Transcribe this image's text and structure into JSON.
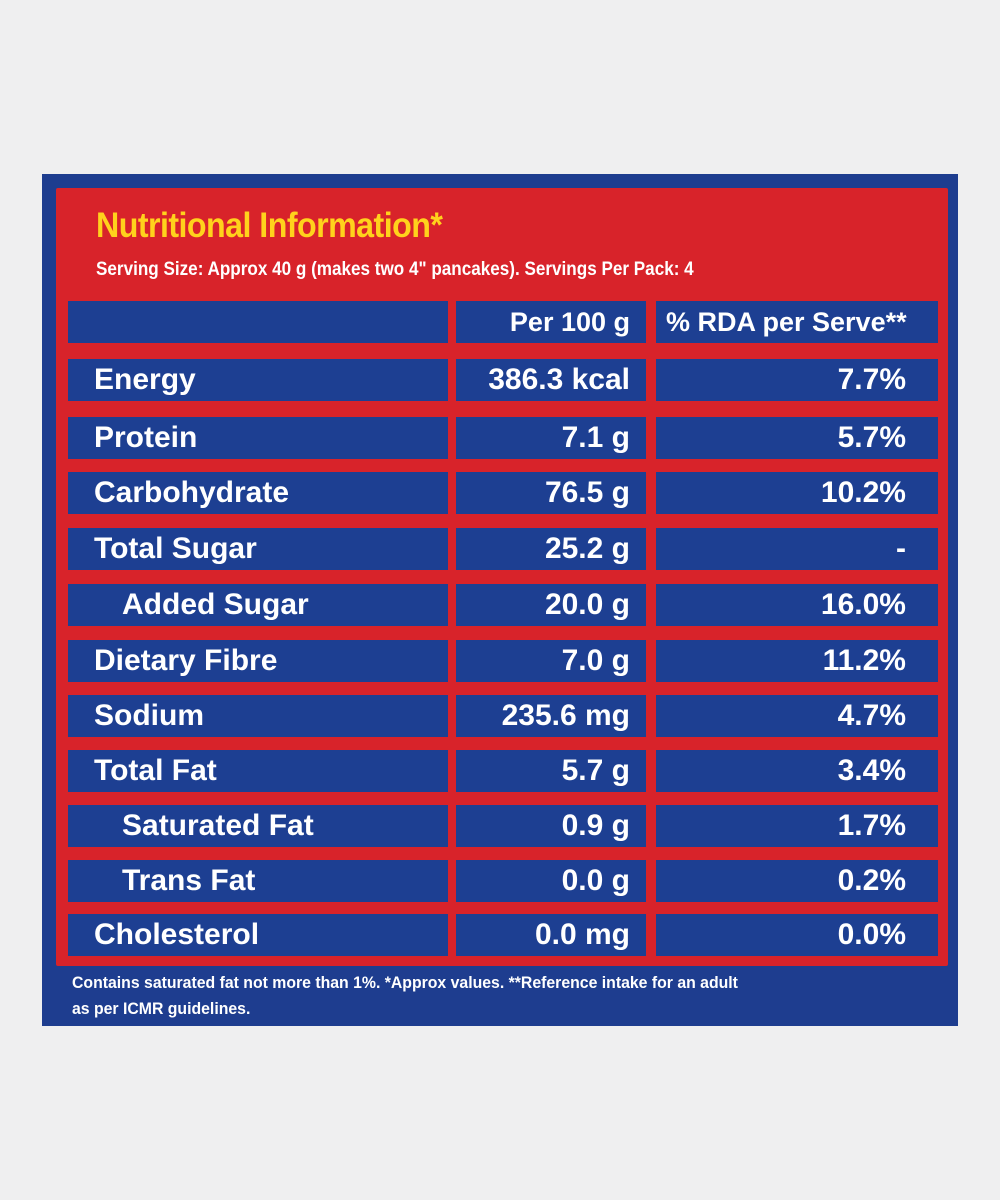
{
  "title": "Nutritional Information*",
  "serving_info": "Serving Size: Approx 40 g (makes two 4\" pancakes). Servings Per Pack: 4",
  "columns": {
    "nutrient": "",
    "per_100g": "Per 100 g",
    "rda": "% RDA per Serve**"
  },
  "rows": [
    {
      "name": "Energy",
      "per_100g": "386.3 kcal",
      "rda": "7.7%"
    },
    {
      "name": "Protein",
      "per_100g": "7.1 g",
      "rda": "5.7%"
    },
    {
      "name": "Carbohydrate",
      "per_100g": "76.5 g",
      "rda": "10.2%"
    },
    {
      "name": "Total Sugar",
      "per_100g": "25.2 g",
      "rda": "-"
    },
    {
      "name": "Added Sugar",
      "per_100g": "20.0 g",
      "rda": "16.0%"
    },
    {
      "name": "Dietary Fibre",
      "per_100g": "7.0 g",
      "rda": "11.2%"
    },
    {
      "name": "Sodium",
      "per_100g": "235.6 mg",
      "rda": "4.7%"
    },
    {
      "name": "Total Fat",
      "per_100g": "5.7 g",
      "rda": "3.4%"
    },
    {
      "name": "Saturated Fat",
      "per_100g": "0.9 g",
      "rda": "1.7%"
    },
    {
      "name": "Trans Fat",
      "per_100g": "0.0 g",
      "rda": "0.2%"
    },
    {
      "name": "Cholesterol",
      "per_100g": "0.0 mg",
      "rda": "0.0%"
    }
  ],
  "footnote": {
    "line1": "Contains saturated fat not more than 1%. *Approx values. **Reference intake for an adult",
    "line2": "as per ICMR guidelines."
  },
  "colors": {
    "panel_blue": "#1e3d8f",
    "table_red": "#d8232a",
    "title_yellow": "#ffd21c",
    "text_white": "#ffffff"
  }
}
